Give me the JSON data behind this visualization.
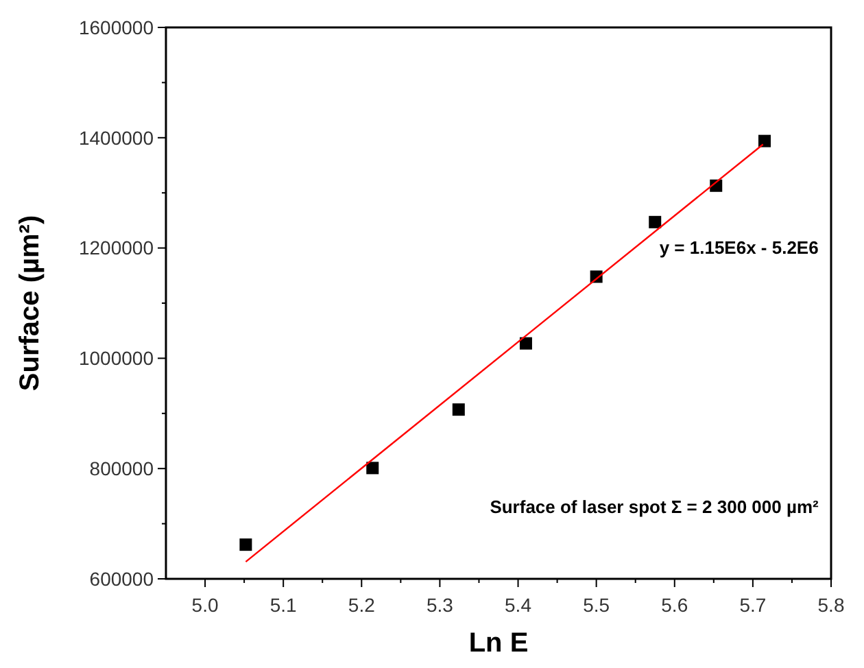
{
  "chart_data": {
    "type": "scatter",
    "xlabel": "Ln E",
    "ylabel": "Surface (µm²)",
    "xlim": [
      4.95,
      5.8
    ],
    "xticks": [
      {
        "value": 5,
        "label": "5.0"
      },
      5.1,
      5.2,
      5.3,
      5.4,
      5.5,
      5.6,
      5.7,
      5.8
    ],
    "ylim": [
      600000,
      1600000
    ],
    "yticks": [
      600000,
      800000,
      1000000,
      1200000,
      1400000,
      1600000
    ],
    "grid": false,
    "marker": "square",
    "series": [
      {
        "color": "#000000",
        "x": [
          5.052,
          5.214,
          5.324,
          5.41,
          5.5,
          5.575,
          5.653,
          5.715
        ],
        "values": [
          662000,
          801000,
          907000,
          1027000,
          1148000,
          1247000,
          1313000,
          1394000
        ]
      },
      {
        "type": "line",
        "color": "#ff0000",
        "x": [
          5.052,
          5.713
        ],
        "values": [
          631000,
          1388000
        ],
        "marker": "none",
        "line_style": "solid"
      }
    ],
    "annotations": [
      "y = 1.15E6x - 5.2E6",
      "Surface of laser spot Σ = 2 300 000 µm²"
    ]
  }
}
